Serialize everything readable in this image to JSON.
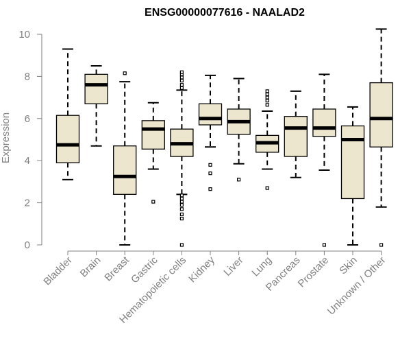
{
  "chart_data": {
    "type": "boxplot",
    "title": "ENSG00000077616 - NAALAD2",
    "xlabel": "",
    "ylabel": "Expression",
    "ylim": [
      0,
      10.5
    ],
    "yticks": [
      0,
      2,
      4,
      6,
      8,
      10
    ],
    "colors": {
      "box_fill": "#ede6ce",
      "median": "#000000",
      "stroke": "#000000",
      "axis": "#808080"
    },
    "categories": [
      "Bladder",
      "Brain",
      "Breast",
      "Gastric",
      "Hematopoietic cells",
      "Kidney",
      "Liver",
      "Lung",
      "Pancreas",
      "Prostate",
      "Skin",
      "Unknown / Other"
    ],
    "series": [
      {
        "name": "Bladder",
        "whisker_low": 3.1,
        "q1": 3.9,
        "median": 4.75,
        "q3": 6.15,
        "whisker_high": 9.3,
        "outliers": []
      },
      {
        "name": "Brain",
        "whisker_low": 4.7,
        "q1": 6.7,
        "median": 7.6,
        "q3": 8.1,
        "whisker_high": 8.5,
        "outliers": []
      },
      {
        "name": "Breast",
        "whisker_low": 0.0,
        "q1": 2.4,
        "median": 3.25,
        "q3": 4.7,
        "whisker_high": 7.75,
        "outliers": [
          8.15
        ]
      },
      {
        "name": "Gastric",
        "whisker_low": 3.6,
        "q1": 4.55,
        "median": 5.5,
        "q3": 5.9,
        "whisker_high": 6.75,
        "outliers": [
          2.05
        ]
      },
      {
        "name": "Hematopoietic cells",
        "whisker_low": 2.4,
        "q1": 4.2,
        "median": 4.8,
        "q3": 5.5,
        "whisker_high": 7.35,
        "outliers": [
          0.0,
          1.25,
          1.45,
          1.7,
          1.9,
          2.05,
          2.2,
          2.35,
          7.45,
          7.6,
          7.8,
          7.95,
          8.1,
          8.2
        ]
      },
      {
        "name": "Kidney",
        "whisker_low": 4.65,
        "q1": 5.7,
        "median": 6.0,
        "q3": 6.7,
        "whisker_high": 8.05,
        "outliers": [
          2.65,
          3.4,
          3.8
        ]
      },
      {
        "name": "Liver",
        "whisker_low": 3.85,
        "q1": 5.25,
        "median": 5.85,
        "q3": 6.45,
        "whisker_high": 7.9,
        "outliers": [
          3.1
        ]
      },
      {
        "name": "Lung",
        "whisker_low": 3.6,
        "q1": 4.4,
        "median": 4.85,
        "q3": 5.2,
        "whisker_high": 6.35,
        "outliers": [
          2.7,
          6.65,
          6.85,
          7.0,
          7.15,
          7.3
        ]
      },
      {
        "name": "Pancreas",
        "whisker_low": 3.2,
        "q1": 4.2,
        "median": 5.55,
        "q3": 6.1,
        "whisker_high": 7.3,
        "outliers": []
      },
      {
        "name": "Prostate",
        "whisker_low": 3.55,
        "q1": 5.15,
        "median": 5.55,
        "q3": 6.45,
        "whisker_high": 8.1,
        "outliers": [
          0.0
        ]
      },
      {
        "name": "Skin",
        "whisker_low": 0.0,
        "q1": 2.2,
        "median": 5.0,
        "q3": 5.65,
        "whisker_high": 6.55,
        "outliers": []
      },
      {
        "name": "Unknown / Other",
        "whisker_low": 1.8,
        "q1": 4.65,
        "median": 6.0,
        "q3": 7.7,
        "whisker_high": 10.25,
        "outliers": [
          0.0
        ]
      }
    ]
  }
}
